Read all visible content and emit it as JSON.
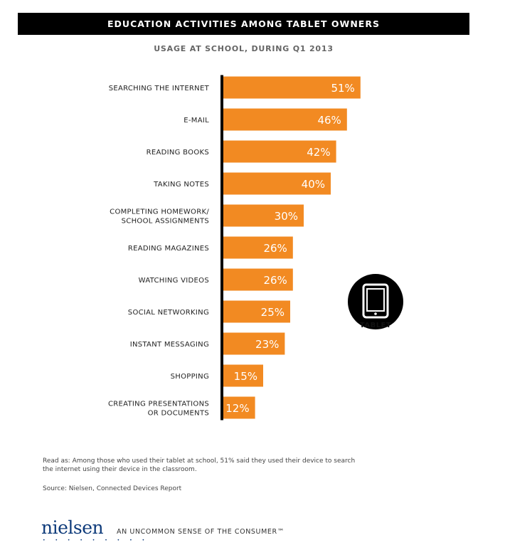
{
  "title": "EDUCATION ACTIVITIES AMONG TABLET OWNERS",
  "subtitle": "USAGE AT SCHOOL, DURING Q1 2013",
  "device_label": "TABLET",
  "note": "Read as: Among those who used their tablet at school, 51% said they used their device to search the internet using their device in the classroom.",
  "source": "Source: Nielsen, Connected Devices Report",
  "logo": "nielsen",
  "logo_dots": "• • • • • • • • •",
  "tagline": "AN UNCOMMON SENSE OF THE CONSUMER™",
  "colors": {
    "bar": "#f28a22",
    "axis": "#000000"
  },
  "icon": "tablet-icon",
  "chart_data": {
    "type": "bar",
    "orientation": "horizontal",
    "categories": [
      [
        "SEARCHING THE INTERNET"
      ],
      [
        "E-MAIL"
      ],
      [
        "READING BOOKS"
      ],
      [
        "TAKING NOTES"
      ],
      [
        "COMPLETING HOMEWORK/",
        "SCHOOL ASSIGNMENTS"
      ],
      [
        "READING MAGAZINES"
      ],
      [
        "WATCHING VIDEOS"
      ],
      [
        "SOCIAL NETWORKING"
      ],
      [
        "INSTANT MESSAGING"
      ],
      [
        "SHOPPING"
      ],
      [
        "CREATING PRESENTATIONS",
        "OR DOCUMENTS"
      ]
    ],
    "values": [
      51,
      46,
      42,
      40,
      30,
      26,
      26,
      25,
      23,
      15,
      12
    ],
    "value_labels": [
      "51%",
      "46%",
      "42%",
      "40%",
      "30%",
      "26%",
      "26%",
      "25%",
      "23%",
      "15%",
      "12%"
    ],
    "xlim": [
      0,
      100
    ],
    "grid": false,
    "legend": "none"
  }
}
